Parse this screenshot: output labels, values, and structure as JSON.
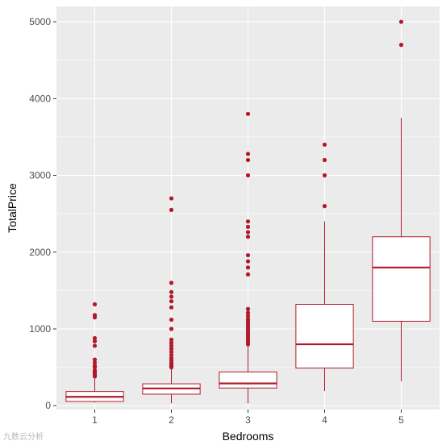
{
  "chart_data": {
    "type": "boxplot",
    "xlabel": "Bedrooms",
    "ylabel": "TotalPrice",
    "categories": [
      "1",
      "2",
      "3",
      "4",
      "5"
    ],
    "ylim": [
      -50,
      5200
    ],
    "yticks": [
      0,
      1000,
      2000,
      3000,
      4000,
      5000
    ],
    "grid": true,
    "legend": "none",
    "colors": {
      "box": "#b2182b",
      "outlier": "#b2182b",
      "fill": "#ffffff",
      "panel": "#ebebeb",
      "grid": "#ffffff"
    },
    "boxes": [
      {
        "category": "1",
        "whisker_low": 40,
        "q1": 55,
        "median": 115,
        "q3": 185,
        "whisker_high": 350,
        "outliers": [
          380,
          400,
          420,
          440,
          460,
          500,
          520,
          560,
          600,
          780,
          840,
          880,
          1150,
          1180,
          1320
        ]
      },
      {
        "category": "2",
        "whisker_low": 30,
        "q1": 150,
        "median": 225,
        "q3": 285,
        "whisker_high": 480,
        "outliers": [
          500,
          520,
          540,
          560,
          590,
          620,
          660,
          700,
          740,
          780,
          820,
          860,
          1000,
          1120,
          1280,
          1360,
          1420,
          1480,
          1600,
          2550,
          2700
        ]
      },
      {
        "category": "3",
        "whisker_low": 30,
        "q1": 230,
        "median": 290,
        "q3": 440,
        "whisker_high": 780,
        "outliers": [
          800,
          830,
          860,
          890,
          920,
          950,
          980,
          1010,
          1040,
          1070,
          1100,
          1130,
          1170,
          1210,
          1260,
          1710,
          1800,
          1880,
          1960,
          2200,
          2260,
          2330,
          2400,
          3000,
          3200,
          3280,
          3800
        ]
      },
      {
        "category": "4",
        "whisker_low": 190,
        "q1": 490,
        "median": 800,
        "q3": 1320,
        "whisker_high": 2400,
        "outliers": [
          2600,
          3000,
          3200,
          3400
        ]
      },
      {
        "category": "5",
        "whisker_low": 320,
        "q1": 1100,
        "median": 1800,
        "q3": 2200,
        "whisker_high": 3750,
        "outliers": [
          4700,
          5000
        ]
      }
    ]
  },
  "watermark": "九数云分析"
}
